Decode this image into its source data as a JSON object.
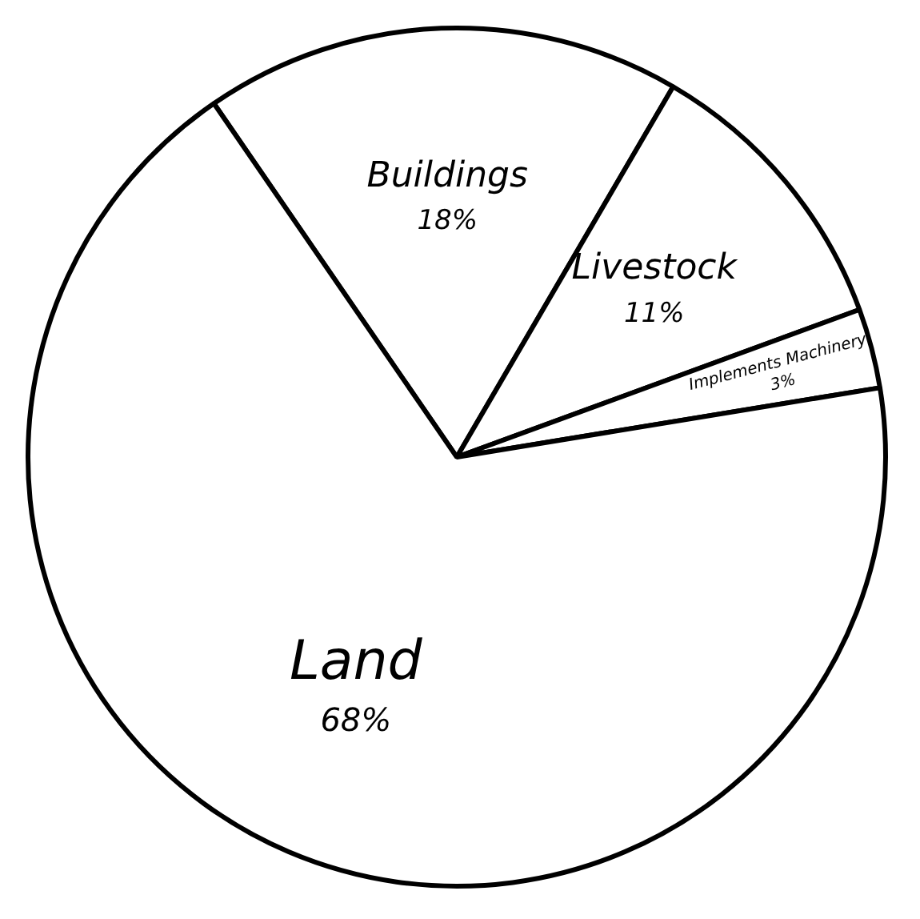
{
  "chart_data": {
    "type": "pie",
    "categories": [
      "Buildings",
      "Livestock",
      "Implements Machinery",
      "Land"
    ],
    "values": [
      18,
      11,
      3,
      68
    ],
    "colors": [
      "#ffffff",
      "#ffffff",
      "#ffffff",
      "#ffffff"
    ],
    "value_labels": [
      "18%",
      "11%",
      "3%",
      "68%"
    ],
    "legend": false
  }
}
